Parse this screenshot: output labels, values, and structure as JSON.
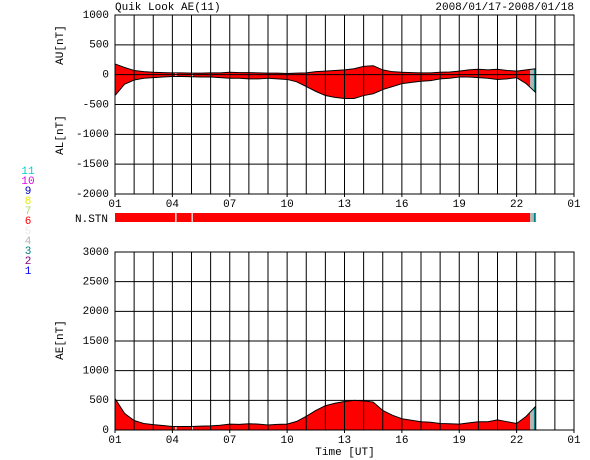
{
  "header": {
    "title": "Quik Look AE(11)",
    "date": "2008/01/17-2008/01/18",
    "xlabel": "Time [UT]"
  },
  "chart_data": [
    {
      "type": "area",
      "x": [
        1,
        1.5,
        2,
        2.5,
        3,
        3.5,
        4,
        4.5,
        5,
        5.5,
        6,
        6.5,
        7,
        7.5,
        8,
        8.5,
        9,
        9.5,
        10,
        10.5,
        11,
        11.5,
        12,
        12.5,
        13,
        13.5,
        14,
        14.5,
        15,
        15.5,
        16,
        16.5,
        17,
        17.5,
        18,
        18.5,
        19,
        19.5,
        20,
        20.5,
        21,
        21.5,
        22,
        22.5,
        23
      ],
      "series": [
        {
          "name": "AU[nT]",
          "color": "#000000",
          "values": [
            180,
            120,
            70,
            50,
            40,
            35,
            30,
            30,
            25,
            25,
            30,
            30,
            40,
            35,
            35,
            30,
            25,
            25,
            20,
            25,
            30,
            50,
            60,
            70,
            80,
            100,
            140,
            150,
            80,
            50,
            40,
            35,
            30,
            30,
            40,
            45,
            60,
            80,
            90,
            80,
            90,
            70,
            60,
            80,
            100
          ]
        },
        {
          "name": "AL[nT]",
          "color": "#000000",
          "values": [
            -350,
            -160,
            -90,
            -60,
            -50,
            -40,
            -30,
            -30,
            -35,
            -40,
            -40,
            -50,
            -60,
            -60,
            -70,
            -70,
            -60,
            -70,
            -80,
            -120,
            -200,
            -280,
            -350,
            -380,
            -400,
            -400,
            -350,
            -320,
            -250,
            -200,
            -150,
            -130,
            -110,
            -100,
            -70,
            -60,
            -40,
            -40,
            -50,
            -60,
            -80,
            -70,
            -50,
            -150,
            -300
          ]
        }
      ],
      "xlim": [
        1,
        25
      ],
      "xticks": [
        {
          "value": 1,
          "label": "01"
        },
        {
          "value": 4,
          "label": "04"
        },
        {
          "value": 7,
          "label": "07"
        },
        10,
        13,
        16,
        19,
        22,
        {
          "value": 25,
          "label": "01"
        }
      ],
      "xgrid": [
        1,
        2,
        3,
        4,
        5,
        6,
        7,
        8,
        9,
        10,
        11,
        12,
        13,
        14,
        15,
        16,
        17,
        18,
        19,
        20,
        21,
        22,
        23,
        24,
        25
      ],
      "ylim": [
        -2000,
        1000
      ],
      "yticks": [
        1000,
        500,
        0,
        -500,
        -1000,
        -1500,
        -2000
      ],
      "grid": true
    },
    {
      "type": "area",
      "x": [
        1,
        1.5,
        2,
        2.5,
        3,
        3.5,
        4,
        4.5,
        5,
        5.5,
        6,
        6.5,
        7,
        7.5,
        8,
        8.5,
        9,
        9.5,
        10,
        10.5,
        11,
        11.5,
        12,
        12.5,
        13,
        13.5,
        14,
        14.5,
        15,
        15.5,
        16,
        16.5,
        17,
        17.5,
        18,
        18.5,
        19,
        19.5,
        20,
        20.5,
        21,
        21.5,
        22,
        22.5,
        23
      ],
      "series": [
        {
          "name": "AE[nT]",
          "color": "#000000",
          "values": [
            530,
            280,
            160,
            110,
            90,
            75,
            60,
            60,
            60,
            65,
            70,
            80,
            100,
            95,
            105,
            100,
            85,
            95,
            100,
            145,
            230,
            330,
            410,
            450,
            480,
            500,
            490,
            470,
            330,
            250,
            190,
            165,
            140,
            130,
            110,
            105,
            100,
            120,
            140,
            140,
            170,
            140,
            110,
            230,
            400
          ]
        }
      ],
      "xlim": [
        1,
        25
      ],
      "xticks": [
        {
          "value": 1,
          "label": "01"
        },
        {
          "value": 4,
          "label": "04"
        },
        {
          "value": 7,
          "label": "07"
        },
        10,
        13,
        16,
        19,
        22,
        {
          "value": 25,
          "label": "01"
        }
      ],
      "xgrid": [
        1,
        2,
        3,
        4,
        5,
        6,
        7,
        8,
        9,
        10,
        11,
        12,
        13,
        14,
        15,
        16,
        17,
        18,
        19,
        20,
        21,
        22,
        23,
        24,
        25
      ],
      "ylim": [
        0,
        3000
      ],
      "yticks": [
        3000,
        2500,
        2000,
        1500,
        1000,
        500,
        0
      ],
      "grid": true
    }
  ],
  "station_count": {
    "label": "N.STN",
    "segments": [
      {
        "start": 1,
        "end": 4.15,
        "count": 6
      },
      {
        "start": 4.15,
        "end": 4.22,
        "count": 5
      },
      {
        "start": 4.22,
        "end": 5.0,
        "count": 6
      },
      {
        "start": 5.0,
        "end": 5.07,
        "count": 5
      },
      {
        "start": 5.07,
        "end": 22.7,
        "count": 6
      },
      {
        "start": 22.7,
        "end": 22.9,
        "count": 4
      },
      {
        "start": 22.9,
        "end": 23,
        "count": 3
      }
    ],
    "legend": [
      {
        "count": 11,
        "color": "#00d0d0"
      },
      {
        "count": 10,
        "color": "#e000e0"
      },
      {
        "count": 9,
        "color": "#0000c0"
      },
      {
        "count": 8,
        "color": "#e8e800"
      },
      {
        "count": 7,
        "color": "#a8d860"
      },
      {
        "count": 6,
        "color": "#ff0000"
      },
      {
        "count": 5,
        "color": "#e8e8e8"
      },
      {
        "count": 4,
        "color": "#b4b4b4"
      },
      {
        "count": 3,
        "color": "#008080"
      },
      {
        "count": 2,
        "color": "#800080"
      },
      {
        "count": 1,
        "color": "#0000ff"
      }
    ]
  }
}
